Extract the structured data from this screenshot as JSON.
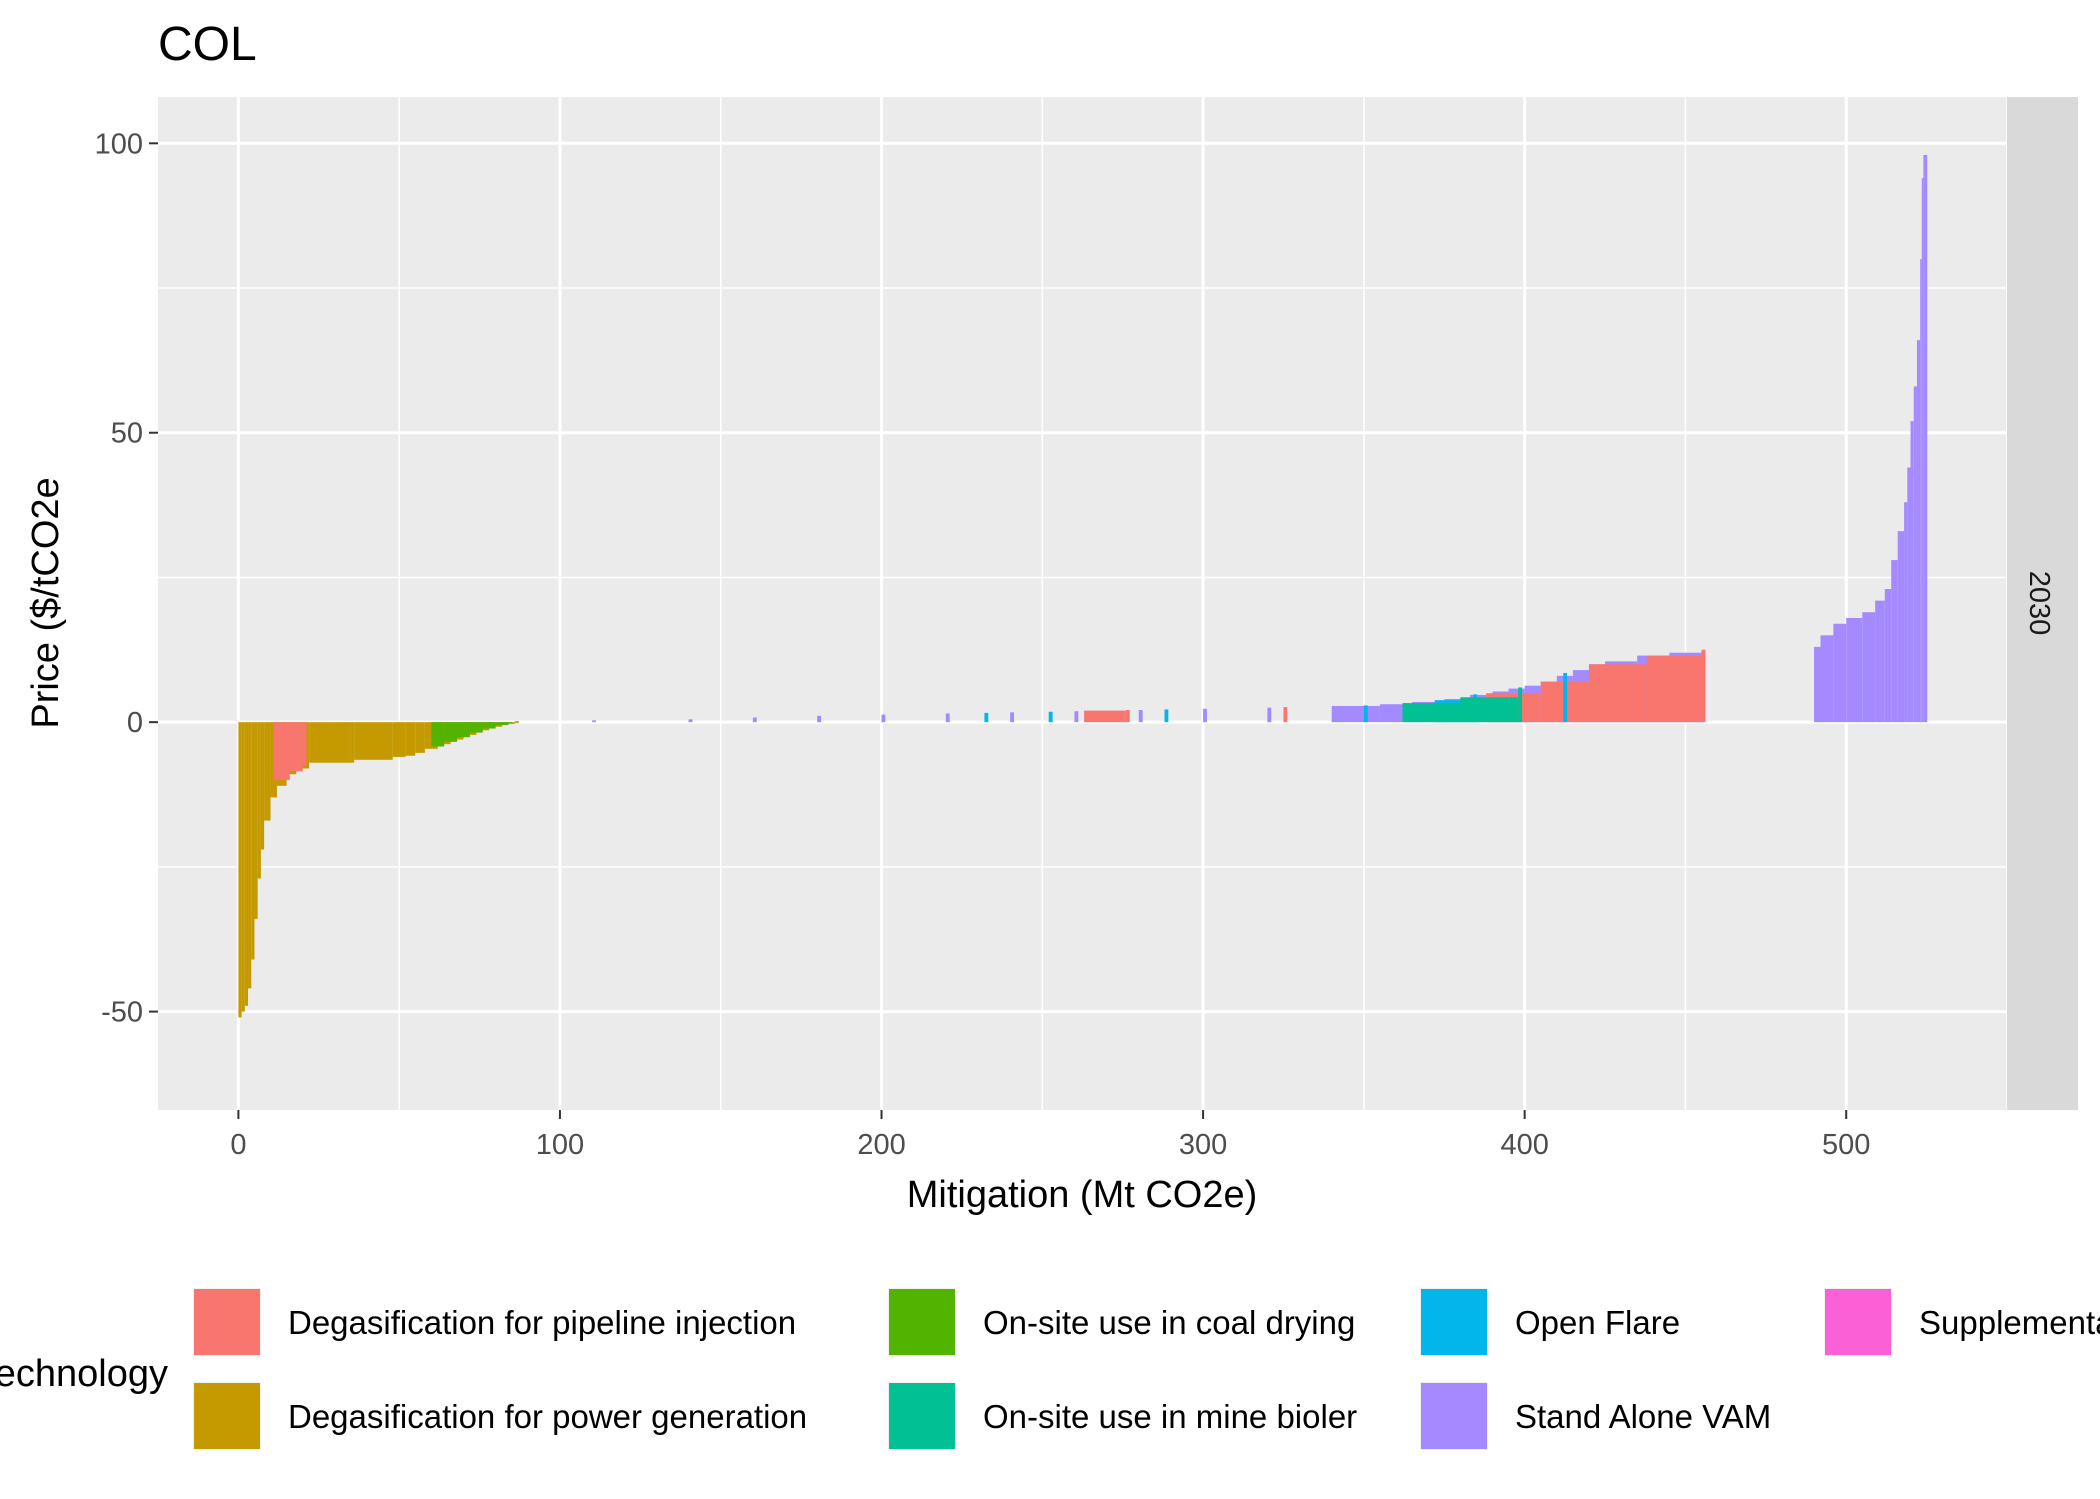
{
  "chart_data": {
    "type": "bar",
    "title": "COL",
    "xlabel": "Mitigation (Mt CO2e)",
    "ylabel": "Price ($/tCO2e",
    "facet_label": "2030",
    "xlim": [
      -25,
      550
    ],
    "ylim": [
      -67,
      108
    ],
    "x_ticks": [
      0,
      100,
      200,
      300,
      400,
      500
    ],
    "x_tick_labels": [
      "0",
      "100",
      "200",
      "300",
      "400",
      "500"
    ],
    "y_ticks": [
      -50,
      0,
      50,
      100
    ],
    "y_tick_labels": [
      "-50",
      "0",
      "50",
      "100"
    ],
    "grid": true,
    "legend": {
      "title": "Technology",
      "position": "bottom",
      "entries": [
        {
          "label": "Degasification for pipeline injection",
          "color": "#F8766D"
        },
        {
          "label": "Degasification for power generation",
          "color": "#C49A00"
        },
        {
          "label": "On-site use in coal drying",
          "color": "#53B400"
        },
        {
          "label": "On-site use in mine bioler",
          "color": "#00C094"
        },
        {
          "label": "Open Flare",
          "color": "#00B6EB"
        },
        {
          "label": "Stand Alone VAM",
          "color": "#A58AFF"
        },
        {
          "label": "Supplemental",
          "color": "#FB61D7"
        }
      ]
    },
    "series": [
      {
        "name": "Degasification for power generation",
        "color": "#C49A00",
        "points": [
          [
            0,
            -51
          ],
          [
            1,
            -50
          ],
          [
            2,
            -49
          ],
          [
            3,
            -46
          ],
          [
            4,
            -41
          ],
          [
            5,
            -34
          ],
          [
            6,
            -27
          ],
          [
            7,
            -22
          ],
          [
            8,
            -17
          ],
          [
            10,
            -13
          ],
          [
            12,
            -11
          ],
          [
            15,
            -9
          ],
          [
            18,
            -8
          ],
          [
            22,
            -7
          ],
          [
            35,
            -7
          ],
          [
            36,
            -6.5
          ],
          [
            48,
            -6
          ],
          [
            52,
            -5.8
          ],
          [
            55,
            -5.3
          ],
          [
            58,
            -4.6
          ],
          [
            62,
            -3.8
          ],
          [
            66,
            -3
          ],
          [
            70,
            -2.2
          ],
          [
            74,
            -1.4
          ],
          [
            78,
            -0.8
          ],
          [
            82,
            -0.3
          ],
          [
            86,
            0
          ]
        ]
      },
      {
        "name": "Stand Alone VAM",
        "color": "#A58AFF",
        "points": [
          [
            86,
            0.2
          ],
          [
            110,
            0.3
          ],
          [
            140,
            0.5
          ],
          [
            160,
            0.8
          ],
          [
            180,
            1.1
          ],
          [
            200,
            1.3
          ],
          [
            220,
            1.5
          ],
          [
            240,
            1.7
          ],
          [
            260,
            1.9
          ],
          [
            280,
            2.1
          ],
          [
            300,
            2.3
          ],
          [
            320,
            2.5
          ],
          [
            340,
            2.8
          ],
          [
            355,
            3.1
          ],
          [
            365,
            3.5
          ],
          [
            375,
            4
          ],
          [
            383,
            4.7
          ],
          [
            390,
            5.3
          ],
          [
            395,
            5.8
          ],
          [
            400,
            6.3
          ],
          [
            405,
            7
          ],
          [
            410,
            8
          ],
          [
            415,
            9
          ],
          [
            420,
            10
          ],
          [
            425,
            10.5
          ],
          [
            435,
            11.5
          ],
          [
            445,
            12
          ],
          [
            455,
            12.5
          ],
          [
            490,
            13
          ],
          [
            492,
            15
          ],
          [
            496,
            17
          ],
          [
            500,
            18
          ],
          [
            505,
            19
          ],
          [
            509,
            21
          ],
          [
            512,
            23
          ],
          [
            514,
            28
          ],
          [
            516,
            33
          ],
          [
            518,
            38
          ],
          [
            519,
            44
          ],
          [
            520,
            52
          ],
          [
            521,
            58
          ],
          [
            522,
            66
          ],
          [
            523,
            80
          ],
          [
            523.5,
            94
          ],
          [
            524,
            98
          ]
        ]
      },
      {
        "name": "Degasification for pipeline injection",
        "color": "#F8766D",
        "points": [
          [
            11,
            -10
          ],
          [
            16,
            -8.5
          ],
          [
            20,
            -7.5
          ],
          [
            263,
            2
          ],
          [
            276,
            2.1
          ],
          [
            325,
            2.6
          ],
          [
            388,
            5
          ],
          [
            405,
            7
          ],
          [
            420,
            10
          ],
          [
            438,
            11.5
          ],
          [
            455,
            12.5
          ]
        ]
      },
      {
        "name": "On-site use in coal drying",
        "color": "#53B400",
        "points": [
          [
            60,
            -4.2
          ],
          [
            64,
            -3.4
          ],
          [
            68,
            -2.6
          ],
          [
            72,
            -1.8
          ],
          [
            76,
            -1.1
          ],
          [
            80,
            -0.5
          ],
          [
            84,
            -0.1
          ]
        ]
      },
      {
        "name": "Open Flare",
        "color": "#00B6EB",
        "points": [
          [
            232,
            1.6
          ],
          [
            252,
            1.8
          ],
          [
            288,
            2.2
          ],
          [
            350,
            2.9
          ],
          [
            372,
            3.8
          ],
          [
            384,
            4.8
          ],
          [
            412,
            8.5
          ]
        ]
      },
      {
        "name": "On-site use in mine bioler",
        "color": "#00C094",
        "points": [
          [
            362,
            3.3
          ],
          [
            380,
            4.3
          ],
          [
            398,
            6
          ]
        ]
      }
    ]
  }
}
